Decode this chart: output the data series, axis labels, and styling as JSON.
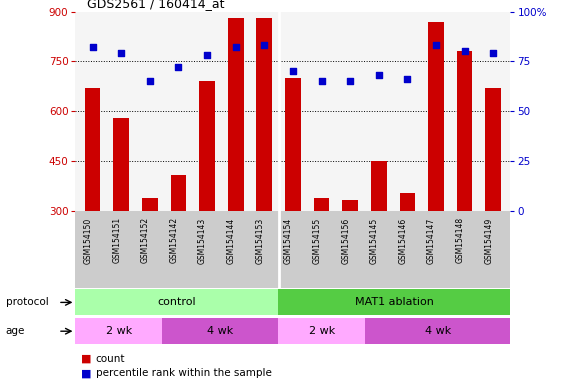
{
  "title": "GDS2561 / 160414_at",
  "samples": [
    "GSM154150",
    "GSM154151",
    "GSM154152",
    "GSM154142",
    "GSM154143",
    "GSM154144",
    "GSM154153",
    "GSM154154",
    "GSM154155",
    "GSM154156",
    "GSM154145",
    "GSM154146",
    "GSM154147",
    "GSM154148",
    "GSM154149"
  ],
  "counts": [
    670,
    580,
    340,
    410,
    690,
    880,
    880,
    700,
    340,
    335,
    450,
    355,
    870,
    780,
    670
  ],
  "percentiles": [
    82,
    79,
    65,
    72,
    78,
    82,
    83,
    70,
    65,
    65,
    68,
    66,
    83,
    80,
    79
  ],
  "ylim_left": [
    300,
    900
  ],
  "ylim_right": [
    0,
    100
  ],
  "yticks_left": [
    300,
    450,
    600,
    750,
    900
  ],
  "yticks_right": [
    0,
    25,
    50,
    75,
    100
  ],
  "bar_color": "#cc0000",
  "scatter_color": "#0000cc",
  "control_color": "#aaffaa",
  "ablation_color": "#55cc44",
  "age_2wk_color": "#ffaaff",
  "age_4wk_color": "#cc55cc",
  "label_bg": "#cccccc",
  "plot_bg": "#f5f5f5",
  "grid_color": "#000000",
  "n_control": 7,
  "n_ablation": 8,
  "n_2wk_ctrl": 3,
  "n_4wk_ctrl": 4,
  "n_2wk_abl": 3,
  "n_4wk_abl": 5
}
